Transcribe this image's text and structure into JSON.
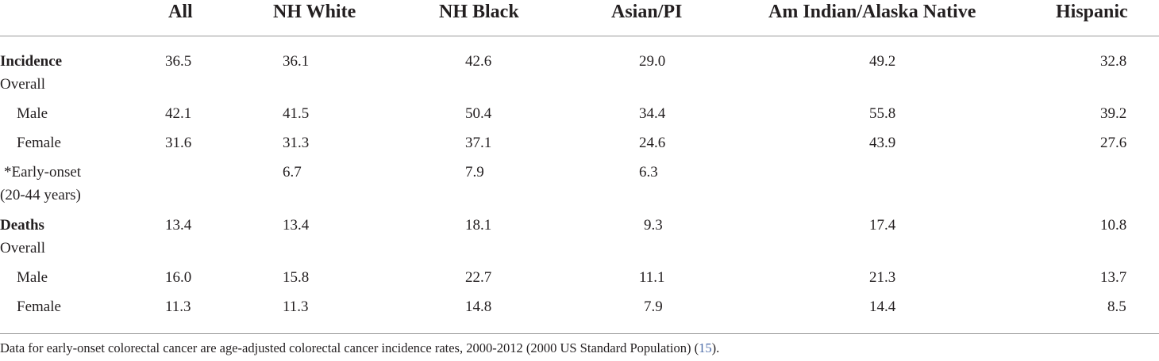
{
  "header": {
    "all": "All",
    "nh_white": "NH White",
    "nh_black": "NH Black",
    "asian_pi": "Asian/PI",
    "am_indian": "Am Indian/Alaska Native",
    "hispanic": "Hispanic"
  },
  "incidence": {
    "label": "Incidence",
    "sublabel": "Overall",
    "overall": [
      "36.5",
      "36.1",
      "42.6",
      "29.0",
      "49.2",
      "32.8"
    ],
    "male_label": "Male",
    "male": [
      "42.1",
      "41.5",
      "50.4",
      "34.4",
      "55.8",
      "39.2"
    ],
    "female_label": "Female",
    "female": [
      "31.6",
      "31.3",
      "37.1",
      "24.6",
      "43.9",
      "27.6"
    ],
    "early_label": "*Early-onset",
    "early_sublabel": "(20-44 years)",
    "early": [
      "6.7",
      "7.9",
      "6.3"
    ]
  },
  "deaths": {
    "label": "Deaths",
    "sublabel": "Overall",
    "overall": [
      "13.4",
      "13.4",
      "18.1",
      "9.3",
      "17.4",
      "10.8"
    ],
    "male_label": "Male",
    "male": [
      "16.0",
      "15.8",
      "22.7",
      "11.1",
      "21.3",
      "13.7"
    ],
    "female_label": "Female",
    "female": [
      "11.3",
      "11.3",
      "14.8",
      "7.9",
      "14.4",
      "8.5"
    ]
  },
  "footnote": {
    "text": "Data for early-onset colorectal cancer are age-adjusted colorectal cancer incidence rates, 2000-2012 (2000 US Standard Population) (",
    "ref": "15",
    "end": ")."
  }
}
